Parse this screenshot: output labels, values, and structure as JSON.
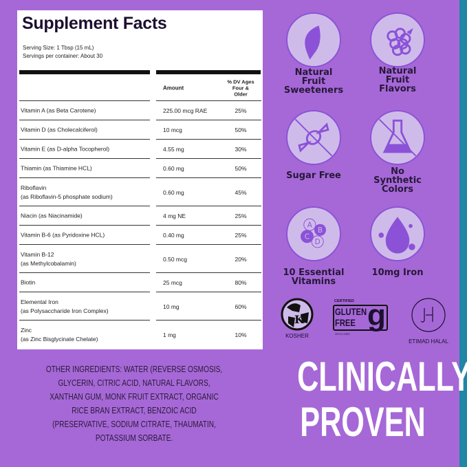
{
  "facts": {
    "title": "Supplement Facts",
    "serving_size": "Serving Size: 1 Tbsp (15 mL)",
    "servings_per_container": "Servings per container: About 30",
    "headers": {
      "amount": "Amount",
      "dv": "% DV Ages Four & Older"
    },
    "rows": [
      {
        "name": "Vitamin A (as Beta Carotene)",
        "amount": "225.00 mcg RAE",
        "dv": "25%"
      },
      {
        "name": "Vitamin D (as Cholecalciferol)",
        "amount": "10 mcg",
        "dv": "50%"
      },
      {
        "name": "Vitamin E (as D-alpha Tocopherol)",
        "amount": "4.55 mg",
        "dv": "30%"
      },
      {
        "name": "Thiamin (as Thiamine HCL)",
        "amount": "0.60 mg",
        "dv": "50%"
      },
      {
        "name": "Riboflavin\n(as Riboflavin-5 phosphate sodium)",
        "amount": "0.60 mg",
        "dv": "45%"
      },
      {
        "name": "Niacin (as Niacinamide)",
        "amount": "4 mg NE",
        "dv": "25%"
      },
      {
        "name": "Vitamin B-6 (as Pyridoxine HCL)",
        "amount": "0.40 mg",
        "dv": "25%"
      },
      {
        "name": "Vitamin B-12\n(as Methylcobalamin)",
        "amount": "0.50 mcg",
        "dv": "20%"
      },
      {
        "name": "Biotin",
        "amount": "25 mcg",
        "dv": "80%"
      },
      {
        "name": "Elemental Iron\n(as Polysaccharide Iron Complex)",
        "amount": "10 mg",
        "dv": "60%"
      },
      {
        "name": "Zinc\n(as Zinc Bisglycinate Chelate)",
        "amount": "1 mg",
        "dv": "10%"
      }
    ]
  },
  "features": [
    {
      "icon": "leaf-icon",
      "label": "Natural Fruit Sweeteners"
    },
    {
      "icon": "raspberry-icon",
      "label": "Natural Fruit Flavors"
    },
    {
      "icon": "no-candy-icon",
      "label": "Sugar Free"
    },
    {
      "icon": "no-flask-icon",
      "label": "No Synthetic Colors"
    },
    {
      "icon": "vitamins-icon",
      "label": "10 Essential Vitamins",
      "letters": [
        "A",
        "B",
        "C",
        "D"
      ]
    },
    {
      "icon": "drop-icon",
      "label": "10mg Iron"
    }
  ],
  "certifications": {
    "kosher": "KOSHER",
    "gluten": {
      "top": "CERTIFIED",
      "line1": "GLUTEN",
      "line2": "FREE",
      "site": "GFCO.ORG"
    },
    "halal": "ETIMAD HALAL"
  },
  "ingredients": "OTHER INGREDIENTS: WATER (REVERSE OSMOSIS, GLYCERIN, CITRIC ACID, NATURAL FLAVORS, XANTHAN GUM, MONK FRUIT EXTRACT, ORGANIC RICE BRAN EXTRACT, BENZOIC ACID (PRESERVATIVE, SODIUM CITRATE, THAUMATIN, POTASSIUM SORBATE.",
  "headline": {
    "line1": "CLINICALLY",
    "line2": "PROVEN"
  },
  "colors": {
    "background": "#a668d6",
    "stripe": "#1f86a6",
    "icon_fill": "#cfbbe9",
    "icon_accent": "#8b52d8"
  }
}
